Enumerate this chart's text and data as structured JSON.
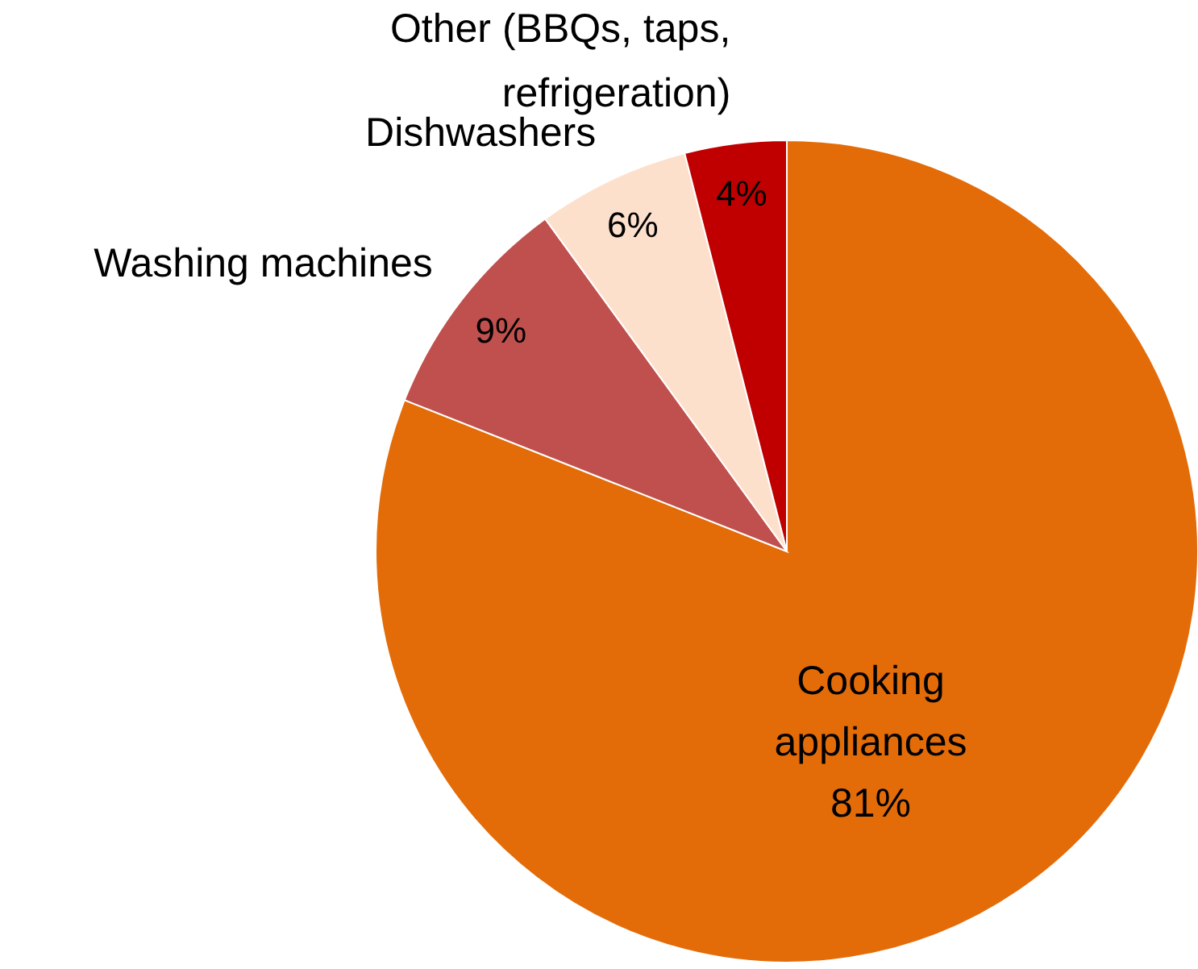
{
  "chart_data": {
    "type": "pie",
    "categories": [
      "Cooking appliances",
      "Washing machines",
      "Dishwashers",
      "Other (BBQs, taps, refrigeration)"
    ],
    "values": [
      81,
      9,
      6,
      4
    ],
    "value_labels": [
      "81%",
      "9%",
      "6%",
      "4%"
    ],
    "colors": [
      "#e36c09",
      "#c0504d",
      "#fde0cc",
      "#c00000"
    ]
  }
}
